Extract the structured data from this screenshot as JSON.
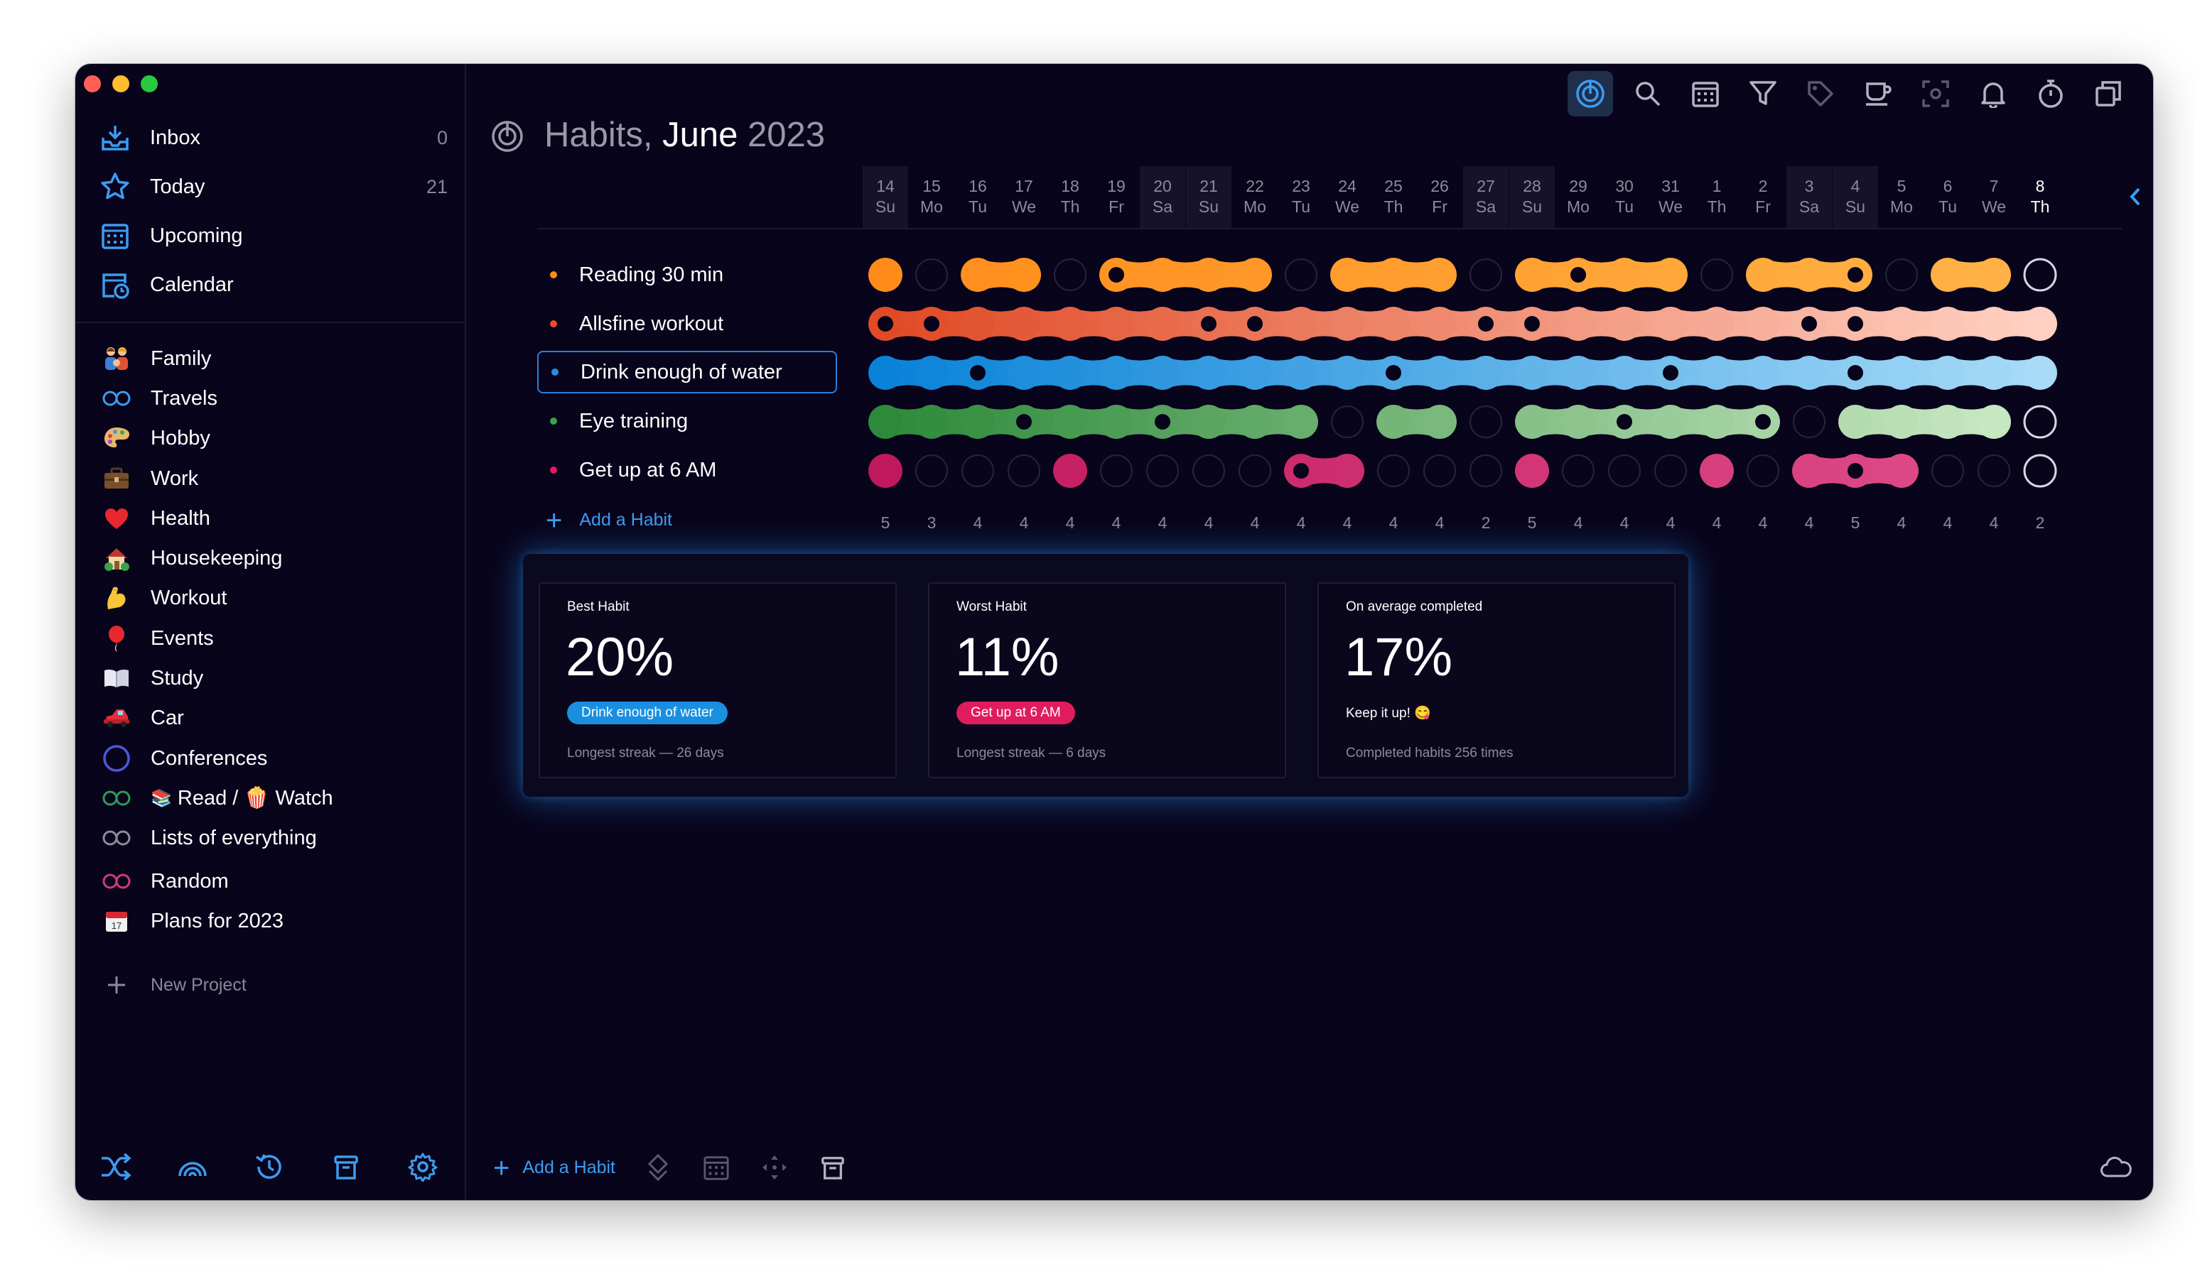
{
  "window": {
    "traffic_lights": [
      "#ff5f57",
      "#febc2e",
      "#28c840"
    ]
  },
  "sidebar": {
    "nav": [
      {
        "label": "Inbox",
        "count": "0",
        "icon": "inbox-icon"
      },
      {
        "label": "Today",
        "count": "21",
        "icon": "star-icon"
      },
      {
        "label": "Upcoming",
        "count": "",
        "icon": "upcoming-calendar-icon"
      },
      {
        "label": "Calendar",
        "count": "",
        "icon": "calendar-clock-icon"
      }
    ],
    "projects": [
      {
        "label": "Family",
        "icon": "family-emoji-icon"
      },
      {
        "label": "Travels",
        "icon": "ring-icon",
        "color": "#3c9cf1"
      },
      {
        "label": "Hobby",
        "icon": "palette-emoji-icon"
      },
      {
        "label": "Work",
        "icon": "briefcase-emoji-icon"
      },
      {
        "label": "Health",
        "icon": "heart-emoji-icon"
      },
      {
        "label": "Housekeeping",
        "icon": "house-emoji-icon"
      },
      {
        "label": "Workout",
        "icon": "flexed-arm-emoji-icon"
      },
      {
        "label": "Events",
        "icon": "balloon-emoji-icon"
      },
      {
        "label": "Study",
        "icon": "book-emoji-icon"
      },
      {
        "label": "Car",
        "icon": "car-emoji-icon"
      },
      {
        "label": "Conferences",
        "icon": "circle-ring-icon",
        "color": "#4b58d8"
      },
      {
        "label": "Read / 🍿 Watch",
        "prefix": "📚",
        "icon": "ring-icon",
        "color": "#2e9a5a"
      },
      {
        "label": "Lists of everything",
        "icon": "ring-icon",
        "color": "#8d8a9c"
      },
      {
        "label": "Random",
        "icon": "ring-icon",
        "color": "#d23a7a"
      },
      {
        "label": "Plans for 2023",
        "icon": "calendar-emoji-icon"
      }
    ],
    "new_project": "New Project",
    "bottom_icons": [
      "shuffle-icon",
      "rainbow-icon",
      "history-icon",
      "trash-icon",
      "settings-icon"
    ]
  },
  "header": {
    "title_prefix": "Habits, ",
    "title_month": "June",
    "title_year": " 2023",
    "toolbar_icons": [
      "habits-icon",
      "search-icon",
      "calendar-icon",
      "filter-icon",
      "tag-icon",
      "coffee-icon",
      "focus-icon",
      "bell-icon",
      "timer-icon",
      "window-icon"
    ]
  },
  "days": [
    {
      "d": "14",
      "w": "Su"
    },
    {
      "d": "15",
      "w": "Mo"
    },
    {
      "d": "16",
      "w": "Tu"
    },
    {
      "d": "17",
      "w": "We"
    },
    {
      "d": "18",
      "w": "Th"
    },
    {
      "d": "19",
      "w": "Fr"
    },
    {
      "d": "20",
      "w": "Sa"
    },
    {
      "d": "21",
      "w": "Su"
    },
    {
      "d": "22",
      "w": "Mo"
    },
    {
      "d": "23",
      "w": "Tu"
    },
    {
      "d": "24",
      "w": "We"
    },
    {
      "d": "25",
      "w": "Th"
    },
    {
      "d": "26",
      "w": "Fr"
    },
    {
      "d": "27",
      "w": "Sa"
    },
    {
      "d": "28",
      "w": "Su"
    },
    {
      "d": "29",
      "w": "Mo"
    },
    {
      "d": "30",
      "w": "Tu"
    },
    {
      "d": "31",
      "w": "We"
    },
    {
      "d": "1",
      "w": "Th"
    },
    {
      "d": "2",
      "w": "Fr"
    },
    {
      "d": "3",
      "w": "Sa"
    },
    {
      "d": "4",
      "w": "Su"
    },
    {
      "d": "5",
      "w": "Mo"
    },
    {
      "d": "6",
      "w": "Tu"
    },
    {
      "d": "7",
      "w": "We"
    },
    {
      "d": "8",
      "w": "Th"
    }
  ],
  "habits": [
    {
      "name": "Reading 30 min",
      "color_start": "#ff8c1a",
      "color_end": "#ffb347",
      "dot": "#ff8c1a",
      "done": [
        1,
        0,
        1,
        1,
        0,
        1,
        1,
        1,
        1,
        0,
        1,
        1,
        1,
        0,
        1,
        1,
        1,
        1,
        0,
        1,
        1,
        1,
        0,
        1,
        1,
        0
      ],
      "markers": [
        5,
        15,
        21
      ]
    },
    {
      "name": "Allsfine workout",
      "color_start": "#e04a25",
      "color_end": "#ffd0c2",
      "dot": "#f04a2a",
      "done": [
        1,
        1,
        1,
        1,
        1,
        1,
        1,
        1,
        1,
        1,
        1,
        1,
        1,
        1,
        1,
        1,
        1,
        1,
        1,
        1,
        1,
        1,
        1,
        1,
        1,
        1
      ],
      "markers": [
        0,
        1,
        7,
        8,
        13,
        14,
        20,
        21
      ]
    },
    {
      "name": "Drink enough of water",
      "color_start": "#0a82d8",
      "color_end": "#a7dbf7",
      "dot": "#2b8de0",
      "done": [
        1,
        1,
        1,
        1,
        1,
        1,
        1,
        1,
        1,
        1,
        1,
        1,
        1,
        1,
        1,
        1,
        1,
        1,
        1,
        1,
        1,
        1,
        1,
        1,
        1,
        1
      ],
      "markers": [
        2,
        11,
        17,
        21
      ],
      "selected": true
    },
    {
      "name": "Eye training",
      "color_start": "#2e8a3a",
      "color_end": "#cdebc6",
      "dot": "#39a14a",
      "done": [
        1,
        1,
        1,
        1,
        1,
        1,
        1,
        1,
        1,
        1,
        0,
        1,
        1,
        0,
        1,
        1,
        1,
        1,
        1,
        1,
        0,
        1,
        1,
        1,
        1,
        0
      ],
      "markers": [
        3,
        6,
        16,
        19
      ]
    },
    {
      "name": "Get up at 6 AM",
      "color_start": "#c0185c",
      "color_end": "#e04e8a",
      "dot": "#e01c5e",
      "done": [
        1,
        0,
        0,
        0,
        1,
        0,
        0,
        0,
        0,
        1,
        1,
        0,
        0,
        0,
        1,
        0,
        0,
        0,
        1,
        0,
        1,
        1,
        1,
        0,
        0,
        0
      ],
      "markers": [
        9,
        21
      ]
    }
  ],
  "daily_totals": [
    "5",
    "3",
    "4",
    "4",
    "4",
    "4",
    "4",
    "4",
    "4",
    "4",
    "4",
    "4",
    "4",
    "2",
    "5",
    "4",
    "4",
    "4",
    "4",
    "4",
    "4",
    "5",
    "4",
    "4",
    "4",
    "2"
  ],
  "add_habit": "Add a Habit",
  "stats": {
    "best": {
      "title": "Best Habit",
      "value": "20%",
      "badge": "Drink enough of water",
      "badge_color": "#1a8fe0",
      "foot": "Longest streak — 26 days"
    },
    "worst": {
      "title": "Worst Habit",
      "value": "11%",
      "badge": "Get up at 6 AM",
      "badge_color": "#e01c5e",
      "foot": "Longest streak — 6 days"
    },
    "average": {
      "title": "On average completed",
      "value": "17%",
      "keep": "Keep it up! 😋",
      "foot": "Completed habits 256 times"
    }
  },
  "bottom_bar": {
    "add_label": "Add a Habit",
    "icons": [
      "priority-icon",
      "date-icon",
      "move-icon",
      "delete-icon",
      "cloud-icon"
    ]
  }
}
